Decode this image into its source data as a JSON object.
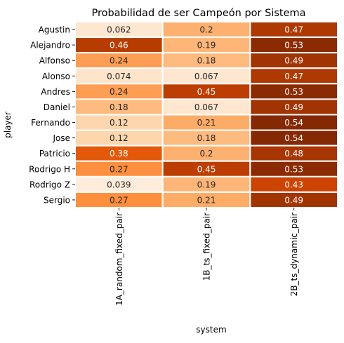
{
  "chart_data": {
    "type": "heatmap",
    "title": "Probabilidad de ser Campeón por Sistema",
    "xlabel": "system",
    "ylabel": "player",
    "colormap": "Oranges",
    "color_range": [
      0.0,
      0.55
    ],
    "grid_line_color": "#ffffff",
    "text_dark": "#262626",
    "text_light": "#ffffff",
    "columns": [
      "1A_random_fixed_pair",
      "1B_ts_fixed_pair",
      "2B_ts_dynamic_pair"
    ],
    "rows": [
      "Agustin",
      "Alejandro",
      "Alfonso",
      "Alonso",
      "Andres",
      "Daniel",
      "Fernando",
      "Jose",
      "Patricio",
      "Rodrigo H",
      "Rodrigo Z",
      "Sergio"
    ],
    "labels": [
      [
        "0.062",
        "0.2",
        "0.47"
      ],
      [
        "0.46",
        "0.19",
        "0.53"
      ],
      [
        "0.24",
        "0.18",
        "0.49"
      ],
      [
        "0.074",
        "0.067",
        "0.47"
      ],
      [
        "0.24",
        "0.45",
        "0.53"
      ],
      [
        "0.18",
        "0.067",
        "0.49"
      ],
      [
        "0.12",
        "0.21",
        "0.54"
      ],
      [
        "0.12",
        "0.18",
        "0.54"
      ],
      [
        "0.38",
        "0.2",
        "0.48"
      ],
      [
        "0.27",
        "0.45",
        "0.53"
      ],
      [
        "0.039",
        "0.19",
        "0.43"
      ],
      [
        "0.27",
        "0.21",
        "0.49"
      ]
    ],
    "values": [
      [
        0.062,
        0.2,
        0.47
      ],
      [
        0.46,
        0.19,
        0.53
      ],
      [
        0.24,
        0.18,
        0.49
      ],
      [
        0.074,
        0.067,
        0.47
      ],
      [
        0.24,
        0.45,
        0.53
      ],
      [
        0.18,
        0.067,
        0.49
      ],
      [
        0.12,
        0.21,
        0.54
      ],
      [
        0.12,
        0.18,
        0.54
      ],
      [
        0.38,
        0.2,
        0.48
      ],
      [
        0.27,
        0.45,
        0.53
      ],
      [
        0.039,
        0.19,
        0.43
      ],
      [
        0.27,
        0.21,
        0.49
      ]
    ]
  }
}
